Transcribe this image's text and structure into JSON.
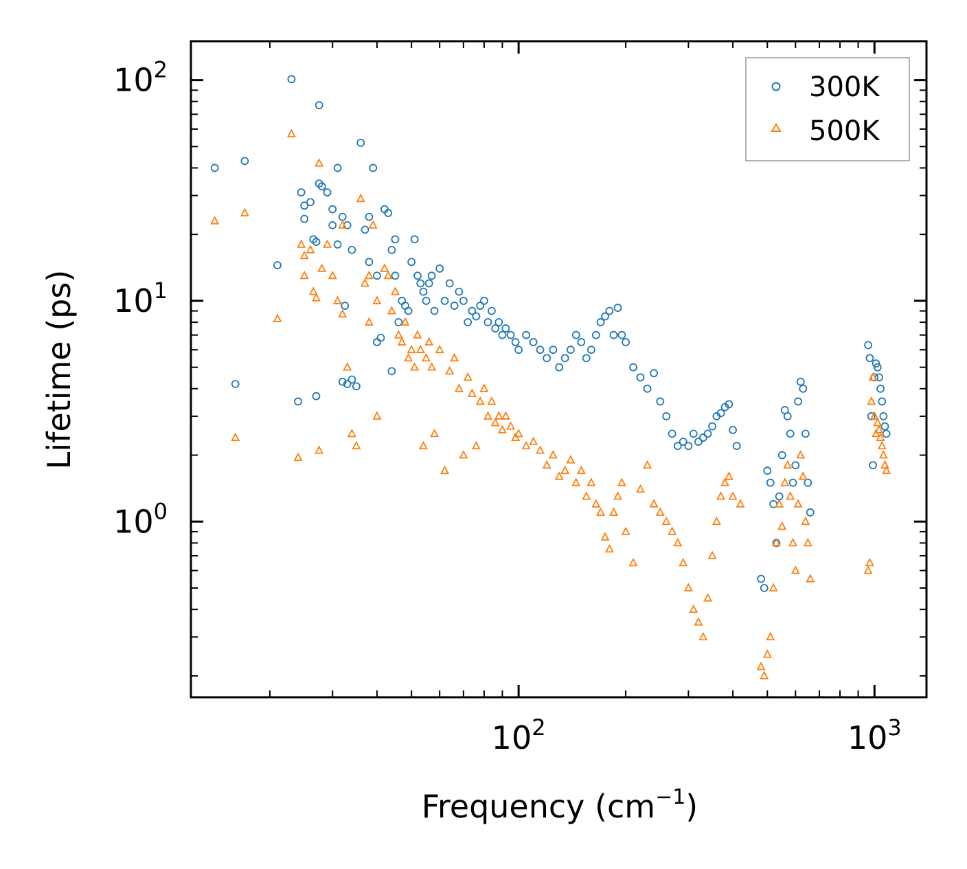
{
  "chart_data": {
    "type": "scatter",
    "title": "",
    "xlabel": "Frequency (cm",
    "xlabel_sup": "−1",
    "xlabel_close": ")",
    "ylabel": "Lifetime (ps)",
    "xscale": "log",
    "yscale": "log",
    "xlim": [
      12,
      1400
    ],
    "ylim": [
      0.16,
      150
    ],
    "x_ticks": [
      {
        "value": 100,
        "base": "10",
        "exp": "2"
      },
      {
        "value": 1000,
        "base": "10",
        "exp": "3"
      }
    ],
    "y_ticks": [
      {
        "value": 1,
        "base": "10",
        "exp": "0"
      },
      {
        "value": 10,
        "base": "10",
        "exp": "1"
      },
      {
        "value": 100,
        "base": "10",
        "exp": "2"
      }
    ],
    "legend_position": "top-right",
    "series": [
      {
        "name": "300K",
        "marker": "circle",
        "color": "#1f77b4",
        "points": [
          [
            14,
            40
          ],
          [
            16,
            4.2
          ],
          [
            17,
            43
          ],
          [
            21,
            14.5
          ],
          [
            23,
            101
          ],
          [
            24,
            3.5
          ],
          [
            24.5,
            31
          ],
          [
            25,
            23.5
          ],
          [
            25,
            27
          ],
          [
            26,
            28
          ],
          [
            26.5,
            19
          ],
          [
            27,
            18.5
          ],
          [
            27,
            3.7
          ],
          [
            27.5,
            77
          ],
          [
            27.5,
            34
          ],
          [
            28,
            33
          ],
          [
            29,
            31
          ],
          [
            30,
            22
          ],
          [
            30,
            26
          ],
          [
            31,
            18
          ],
          [
            31,
            40
          ],
          [
            32,
            24
          ],
          [
            32,
            4.3
          ],
          [
            32.5,
            9.5
          ],
          [
            33,
            22
          ],
          [
            33,
            4.2
          ],
          [
            34,
            17
          ],
          [
            34,
            4.4
          ],
          [
            35,
            4.1
          ],
          [
            36,
            52
          ],
          [
            37,
            21
          ],
          [
            38,
            24
          ],
          [
            38,
            15
          ],
          [
            39,
            40
          ],
          [
            40,
            13
          ],
          [
            40,
            6.5
          ],
          [
            41,
            6.8
          ],
          [
            42,
            26
          ],
          [
            43,
            25
          ],
          [
            44,
            17
          ],
          [
            44,
            4.8
          ],
          [
            45,
            19
          ],
          [
            45,
            13
          ],
          [
            46,
            8
          ],
          [
            47,
            10
          ],
          [
            48,
            9.5
          ],
          [
            49,
            9
          ],
          [
            50,
            15
          ],
          [
            51,
            19
          ],
          [
            52,
            13
          ],
          [
            53,
            12
          ],
          [
            54,
            11
          ],
          [
            55,
            10
          ],
          [
            56,
            12
          ],
          [
            57,
            13
          ],
          [
            58,
            9
          ],
          [
            60,
            14
          ],
          [
            62,
            10
          ],
          [
            64,
            12
          ],
          [
            66,
            9.5
          ],
          [
            68,
            11
          ],
          [
            70,
            10
          ],
          [
            72,
            8
          ],
          [
            74,
            9
          ],
          [
            76,
            8.5
          ],
          [
            78,
            9.5
          ],
          [
            80,
            10
          ],
          [
            82,
            8
          ],
          [
            84,
            9
          ],
          [
            86,
            7.5
          ],
          [
            88,
            8
          ],
          [
            90,
            7
          ],
          [
            92,
            7.5
          ],
          [
            95,
            7
          ],
          [
            98,
            6.5
          ],
          [
            100,
            6
          ],
          [
            105,
            7
          ],
          [
            110,
            6.5
          ],
          [
            115,
            6
          ],
          [
            120,
            5.5
          ],
          [
            125,
            6
          ],
          [
            130,
            5
          ],
          [
            135,
            5.5
          ],
          [
            140,
            6
          ],
          [
            145,
            7
          ],
          [
            150,
            6.5
          ],
          [
            155,
            5.5
          ],
          [
            160,
            6
          ],
          [
            165,
            7
          ],
          [
            170,
            8
          ],
          [
            175,
            8.5
          ],
          [
            180,
            9
          ],
          [
            185,
            7
          ],
          [
            190,
            9.3
          ],
          [
            195,
            7
          ],
          [
            200,
            6.5
          ],
          [
            210,
            5
          ],
          [
            220,
            4.5
          ],
          [
            230,
            4
          ],
          [
            240,
            4.7
          ],
          [
            250,
            3.5
          ],
          [
            260,
            3
          ],
          [
            270,
            2.5
          ],
          [
            280,
            2.2
          ],
          [
            290,
            2.3
          ],
          [
            300,
            2.2
          ],
          [
            310,
            2.5
          ],
          [
            320,
            2.3
          ],
          [
            330,
            2.4
          ],
          [
            340,
            2.5
          ],
          [
            350,
            2.7
          ],
          [
            360,
            3
          ],
          [
            370,
            3.1
          ],
          [
            380,
            3.3
          ],
          [
            390,
            3.4
          ],
          [
            400,
            2.6
          ],
          [
            410,
            2.2
          ],
          [
            480,
            0.55
          ],
          [
            490,
            0.5
          ],
          [
            500,
            1.7
          ],
          [
            510,
            1.5
          ],
          [
            520,
            1.2
          ],
          [
            530,
            0.8
          ],
          [
            540,
            1.3
          ],
          [
            550,
            2
          ],
          [
            560,
            3.2
          ],
          [
            570,
            3
          ],
          [
            580,
            2.5
          ],
          [
            590,
            1.5
          ],
          [
            600,
            1.8
          ],
          [
            610,
            3.5
          ],
          [
            620,
            4.3
          ],
          [
            630,
            4
          ],
          [
            640,
            2.5
          ],
          [
            650,
            1.5
          ],
          [
            660,
            1.1
          ],
          [
            960,
            6.3
          ],
          [
            970,
            5.5
          ],
          [
            980,
            3
          ],
          [
            990,
            1.8
          ],
          [
            1000,
            4.5
          ],
          [
            1010,
            5.2
          ],
          [
            1020,
            5
          ],
          [
            1030,
            4.5
          ],
          [
            1040,
            4
          ],
          [
            1050,
            3.5
          ],
          [
            1060,
            3
          ],
          [
            1070,
            2.7
          ],
          [
            1080,
            2.5
          ]
        ]
      },
      {
        "name": "500K",
        "marker": "triangle",
        "color": "#ff7f0e",
        "points": [
          [
            14,
            23
          ],
          [
            16,
            2.4
          ],
          [
            17,
            25
          ],
          [
            21,
            8.3
          ],
          [
            23,
            57
          ],
          [
            24,
            1.95
          ],
          [
            24.5,
            18
          ],
          [
            25,
            13
          ],
          [
            25,
            16
          ],
          [
            26,
            17
          ],
          [
            26.5,
            11
          ],
          [
            27,
            10.3
          ],
          [
            27.5,
            42
          ],
          [
            27.5,
            2.1
          ],
          [
            28,
            14
          ],
          [
            29,
            18
          ],
          [
            30,
            13
          ],
          [
            31,
            10
          ],
          [
            32,
            22
          ],
          [
            32,
            8.7
          ],
          [
            33,
            5
          ],
          [
            34,
            2.5
          ],
          [
            35,
            2.2
          ],
          [
            36,
            29
          ],
          [
            37,
            12
          ],
          [
            38,
            13
          ],
          [
            38,
            8
          ],
          [
            39,
            22
          ],
          [
            40,
            10
          ],
          [
            40,
            3
          ],
          [
            42,
            14
          ],
          [
            43,
            13
          ],
          [
            44,
            9
          ],
          [
            45,
            11
          ],
          [
            46,
            7
          ],
          [
            47,
            6.5
          ],
          [
            48,
            8
          ],
          [
            49,
            5.5
          ],
          [
            50,
            6
          ],
          [
            51,
            5
          ],
          [
            52,
            7
          ],
          [
            53,
            6
          ],
          [
            54,
            2.2
          ],
          [
            55,
            5.5
          ],
          [
            56,
            6.5
          ],
          [
            57,
            5
          ],
          [
            58,
            2.5
          ],
          [
            60,
            6
          ],
          [
            62,
            1.7
          ],
          [
            64,
            4.8
          ],
          [
            66,
            5.5
          ],
          [
            68,
            4
          ],
          [
            70,
            2
          ],
          [
            72,
            4.5
          ],
          [
            74,
            3.8
          ],
          [
            76,
            2.2
          ],
          [
            78,
            3.5
          ],
          [
            80,
            4
          ],
          [
            82,
            3
          ],
          [
            84,
            3.5
          ],
          [
            86,
            2.8
          ],
          [
            88,
            3
          ],
          [
            90,
            2.6
          ],
          [
            92,
            3
          ],
          [
            95,
            2.7
          ],
          [
            98,
            2.4
          ],
          [
            100,
            2.5
          ],
          [
            105,
            2.2
          ],
          [
            110,
            2.3
          ],
          [
            115,
            2.1
          ],
          [
            120,
            1.8
          ],
          [
            125,
            2
          ],
          [
            130,
            1.6
          ],
          [
            135,
            1.7
          ],
          [
            140,
            1.9
          ],
          [
            145,
            1.5
          ],
          [
            150,
            1.7
          ],
          [
            155,
            1.3
          ],
          [
            160,
            1.5
          ],
          [
            165,
            1.2
          ],
          [
            170,
            1.1
          ],
          [
            175,
            0.85
          ],
          [
            180,
            0.75
          ],
          [
            185,
            1.1
          ],
          [
            190,
            1.3
          ],
          [
            195,
            1.5
          ],
          [
            200,
            0.9
          ],
          [
            210,
            0.65
          ],
          [
            220,
            1.4
          ],
          [
            230,
            1.8
          ],
          [
            240,
            1.2
          ],
          [
            250,
            1.1
          ],
          [
            260,
            1
          ],
          [
            270,
            0.9
          ],
          [
            280,
            0.8
          ],
          [
            290,
            0.65
          ],
          [
            300,
            0.5
          ],
          [
            310,
            0.4
          ],
          [
            320,
            0.35
          ],
          [
            330,
            0.3
          ],
          [
            340,
            0.45
          ],
          [
            350,
            0.7
          ],
          [
            360,
            1
          ],
          [
            370,
            1.3
          ],
          [
            380,
            1.5
          ],
          [
            390,
            1.6
          ],
          [
            400,
            1.3
          ],
          [
            420,
            1.2
          ],
          [
            480,
            0.22
          ],
          [
            490,
            0.2
          ],
          [
            500,
            0.25
          ],
          [
            510,
            0.3
          ],
          [
            520,
            0.5
          ],
          [
            530,
            0.8
          ],
          [
            540,
            1.2
          ],
          [
            550,
            0.95
          ],
          [
            560,
            1.5
          ],
          [
            570,
            1.8
          ],
          [
            580,
            1.3
          ],
          [
            590,
            0.8
          ],
          [
            600,
            0.6
          ],
          [
            610,
            1.2
          ],
          [
            620,
            2
          ],
          [
            630,
            1.6
          ],
          [
            640,
            1
          ],
          [
            650,
            0.8
          ],
          [
            660,
            0.55
          ],
          [
            960,
            0.6
          ],
          [
            970,
            0.65
          ],
          [
            980,
            3.5
          ],
          [
            990,
            4.5
          ],
          [
            1000,
            3
          ],
          [
            1010,
            2.5
          ],
          [
            1020,
            2.8
          ],
          [
            1030,
            2.6
          ],
          [
            1040,
            2.4
          ],
          [
            1050,
            2.2
          ],
          [
            1060,
            2
          ],
          [
            1070,
            1.8
          ],
          [
            1080,
            1.7
          ]
        ]
      }
    ]
  }
}
